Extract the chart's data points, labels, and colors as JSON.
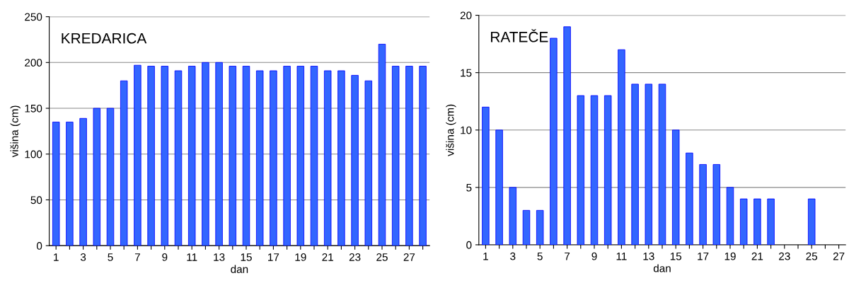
{
  "chart_data": [
    {
      "type": "bar",
      "title": "KREDARICA",
      "xlabel": "dan",
      "ylabel": "višina (cm)",
      "categories": [
        "1",
        null,
        "3",
        null,
        "5",
        null,
        "7",
        null,
        "9",
        null,
        "11",
        null,
        "13",
        null,
        "15",
        null,
        "17",
        null,
        "19",
        null,
        "21",
        null,
        "23",
        null,
        "25",
        null,
        "27",
        null
      ],
      "series": [
        {
          "color": "#3366ff",
          "values": [
            135,
            135,
            139,
            150,
            150,
            180,
            197,
            196,
            196,
            191,
            196,
            200,
            200,
            196,
            196,
            191,
            191,
            196,
            196,
            196,
            191,
            191,
            186,
            180,
            220,
            196,
            196,
            196
          ]
        }
      ],
      "ylim": [
        0,
        250
      ],
      "yticks": [
        0,
        50,
        100,
        150,
        200,
        250
      ],
      "grid": "y",
      "legend": false
    },
    {
      "type": "bar",
      "title": "RATEČE",
      "xlabel": "dan",
      "ylabel": "višina (cm)",
      "categories": [
        "1",
        null,
        "3",
        null,
        "5",
        null,
        "7",
        null,
        "9",
        null,
        "11",
        null,
        "13",
        null,
        "15",
        null,
        "17",
        null,
        "19",
        null,
        "21",
        null,
        "23",
        null,
        "25",
        null,
        "27"
      ],
      "series": [
        {
          "color": "#3366ff",
          "values": [
            12,
            10,
            5,
            3,
            3,
            18,
            19,
            13,
            13,
            13,
            17,
            14,
            14,
            14,
            10,
            8,
            7,
            7,
            5,
            4,
            4,
            4,
            0,
            0,
            4,
            0,
            0
          ]
        }
      ],
      "ylim": [
        0,
        20
      ],
      "yticks": [
        0,
        5,
        10,
        15,
        20
      ],
      "grid": "y",
      "legend": false
    }
  ]
}
